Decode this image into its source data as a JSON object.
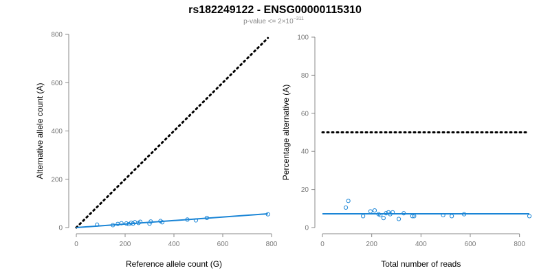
{
  "figure": {
    "title": "rs182249122 - ENSG00000115310",
    "subtitle_prefix": "p-value <= 2",
    "subtitle_times": "×",
    "subtitle_base": "10",
    "subtitle_exp": "−311"
  },
  "chart_data": [
    {
      "type": "scatter",
      "xlabel": "Reference allele count (G)",
      "ylabel": "Alternative allele count (A)",
      "xlim": [
        0,
        800
      ],
      "ylim": [
        0,
        800
      ],
      "xticks": [
        0,
        200,
        400,
        600,
        800
      ],
      "yticks": [
        0,
        200,
        400,
        600,
        800
      ],
      "grid": false,
      "points": {
        "x": [
          85,
          150,
          170,
          185,
          205,
          215,
          225,
          232,
          240,
          255,
          262,
          300,
          305,
          345,
          352,
          455,
          490,
          535,
          785
        ],
        "y": [
          12,
          10,
          15,
          18,
          17,
          14,
          20,
          16,
          22,
          19,
          24,
          16,
          25,
          27,
          22,
          33,
          30,
          40,
          55
        ]
      },
      "fit_line": {
        "x": [
          0,
          785
        ],
        "y": [
          0,
          57
        ]
      },
      "reference_line": {
        "x": [
          0,
          785
        ],
        "y": [
          0,
          785
        ]
      },
      "colors": {
        "points": "#1a85d6",
        "fit": "#1a85d6",
        "reference": "#000000"
      }
    },
    {
      "type": "scatter",
      "xlabel": "Total number of reads",
      "ylabel": "Percentage alternative (A)",
      "xlim": [
        0,
        840
      ],
      "ylim": [
        0,
        100
      ],
      "xticks": [
        0,
        200,
        400,
        600,
        800
      ],
      "yticks": [
        0,
        20,
        40,
        60,
        80,
        100
      ],
      "grid": false,
      "points": {
        "x": [
          95,
          105,
          165,
          195,
          212,
          228,
          235,
          248,
          258,
          268,
          275,
          285,
          310,
          330,
          365,
          372,
          490,
          525,
          575,
          840
        ],
        "y": [
          10.5,
          14,
          6,
          8.5,
          9,
          7,
          6.5,
          5,
          7.5,
          8,
          7,
          8,
          4.5,
          7.5,
          6,
          6,
          6.5,
          6,
          7,
          6
        ]
      },
      "fit_line": {
        "x": [
          0,
          840
        ],
        "y": [
          7.2,
          7.2
        ]
      },
      "reference_line": {
        "x": [
          0,
          840
        ],
        "y": [
          50,
          50
        ]
      },
      "colors": {
        "points": "#1a85d6",
        "fit": "#1a85d6",
        "reference": "#000000"
      }
    }
  ]
}
